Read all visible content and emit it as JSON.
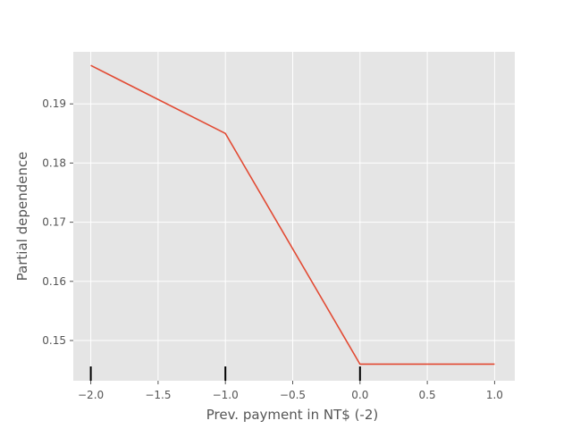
{
  "chart_data": {
    "type": "line",
    "xlabel": "Prev. payment in NT$ (-2)",
    "ylabel": "Partial dependence",
    "xlim": [
      -2.13,
      1.15
    ],
    "ylim": [
      0.1432,
      0.1988
    ],
    "x_ticks": [
      -2.0,
      -1.5,
      -1.0,
      -0.5,
      0.0,
      0.5,
      1.0
    ],
    "x_tick_labels": [
      "−2.0",
      "−1.5",
      "−1.0",
      "−0.5",
      "0.0",
      "0.5",
      "1.0"
    ],
    "y_ticks": [
      0.15,
      0.16,
      0.17,
      0.18,
      0.19
    ],
    "y_tick_labels": [
      "0.15",
      "0.16",
      "0.17",
      "0.18",
      "0.19"
    ],
    "grid": true,
    "series": [
      {
        "x": [
          -2.0,
          -1.0,
          0.0,
          1.0
        ],
        "y": [
          0.1965,
          0.185,
          0.146,
          0.146
        ],
        "color": "#e24a33"
      }
    ],
    "rug_x": [
      -2.0,
      -1.0,
      0.0
    ],
    "colors": {
      "background": "#e5e5e5",
      "grid": "#ffffff",
      "rug": "#000000",
      "text": "#555555"
    }
  }
}
